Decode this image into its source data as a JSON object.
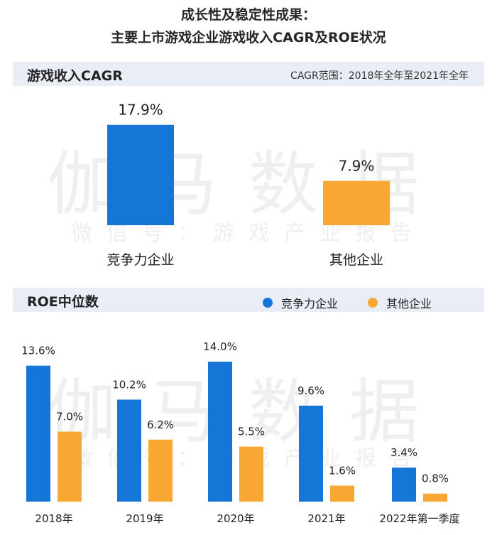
{
  "title": {
    "line1": "成长性及稳定性成果：",
    "line2": "主要上市游戏企业游戏收入CAGR及ROE状况"
  },
  "watermark": {
    "big": "伽马数据",
    "small": "微信号：游戏产业报告"
  },
  "colors": {
    "blue": "#1576d8",
    "orange": "#f8a832",
    "header_bg": "#e9eef6"
  },
  "chart_data": [
    {
      "type": "bar",
      "title": "游戏收入CAGR",
      "note": "CAGR范围：2018年全年至2021年全年",
      "categories": [
        "竞争力企业",
        "其他企业"
      ],
      "values": [
        17.9,
        7.9
      ],
      "labels": [
        "17.9%",
        "7.9%"
      ],
      "unit": "%",
      "colors": [
        "#1576d8",
        "#f8a832"
      ],
      "ylim": [
        0,
        18.5
      ],
      "grid": false
    },
    {
      "type": "bar",
      "title": "ROE中位数",
      "categories": [
        "2018年",
        "2019年",
        "2020年",
        "2021年",
        "2022年第一季度"
      ],
      "series": [
        {
          "name": "竞争力企业",
          "color": "#1576d8",
          "values": [
            13.6,
            10.2,
            14.0,
            9.6,
            3.4
          ],
          "labels": [
            "13.6%",
            "10.2%",
            "14.0%",
            "9.6%",
            "3.4%"
          ]
        },
        {
          "name": "其他企业",
          "color": "#f8a832",
          "values": [
            7.0,
            6.2,
            5.5,
            1.6,
            0.8
          ],
          "labels": [
            "7.0%",
            "6.2%",
            "5.5%",
            "1.6%",
            "0.8%"
          ]
        }
      ],
      "unit": "%",
      "ylim": [
        0,
        14.5
      ],
      "legend": "top-right",
      "grid": false
    }
  ]
}
